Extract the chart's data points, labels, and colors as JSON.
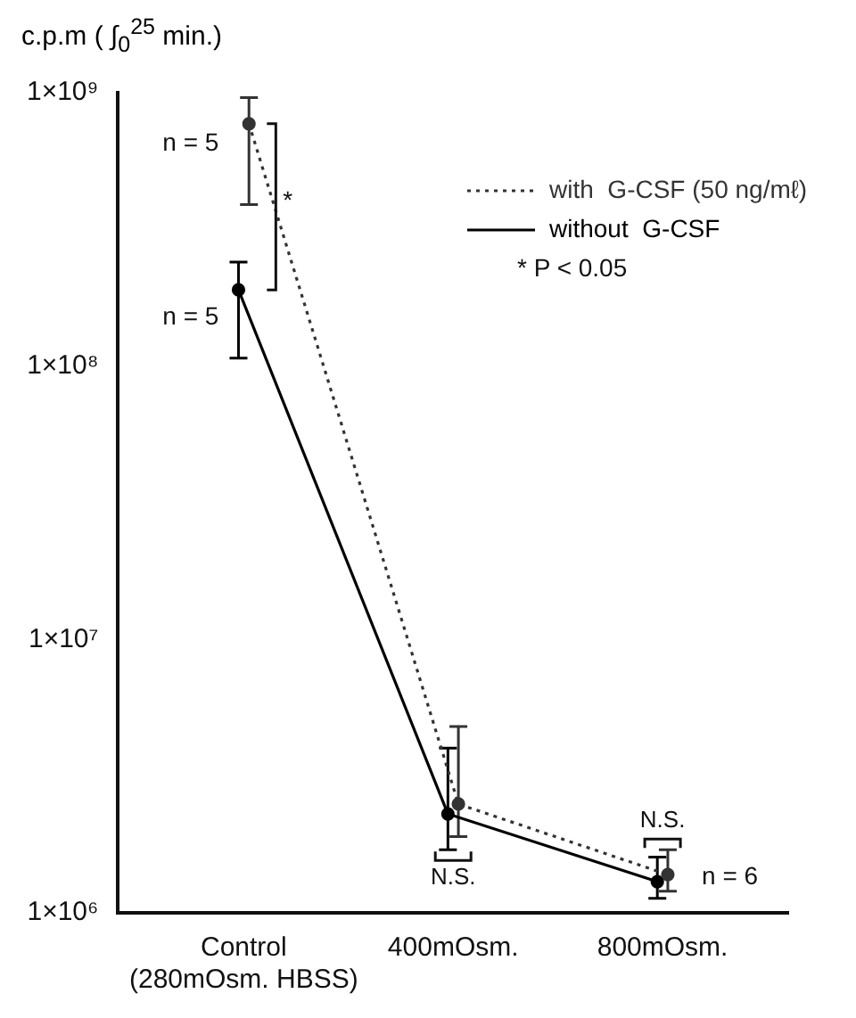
{
  "chart_data": {
    "type": "line",
    "ylabel": "c.p.m ( ∫$_{0}$$^{25}$ min.)",
    "categories": [
      "Control (280mOsm. HBSS)",
      "400mOsm.",
      "800mOsm."
    ],
    "series": [
      {
        "name": "with  G-CSF (50 ng/mℓ)",
        "color": "#333333",
        "line_style": "dotted",
        "values": [
          770000000,
          2500000,
          1380000
        ],
        "errors": [
          [
            390000000,
            960000000
          ],
          [
            1900000,
            4800000
          ],
          [
            1200000,
            1700000
          ]
        ]
      },
      {
        "name": "without  G-CSF",
        "color": "#000000",
        "line_style": "solid",
        "values": [
          190000000,
          2300000,
          1300000
        ],
        "errors": [
          [
            107000000,
            240000000
          ],
          [
            1700000,
            4000000
          ],
          [
            1130000,
            1600000
          ]
        ]
      }
    ],
    "log": true,
    "ylim": [
      1000000,
      1000000000
    ],
    "yticks": [
      {
        "value": 1000000,
        "label": "1×10⁶"
      },
      {
        "value": 10000000,
        "label": "1×10⁷"
      },
      {
        "value": 100000000,
        "label": "1×10⁸"
      },
      {
        "value": 1000000000,
        "label": "1×10⁹"
      }
    ],
    "grid": false,
    "legend": "top right",
    "marker": "circle",
    "annotations": [
      "* P < 0.05",
      {
        "text": "n = 5",
        "x": "Control (280mOsm. HBSS)",
        "y": 650000000
      },
      {
        "text": "n = 5",
        "x": "Control (280mOsm. HBSS)",
        "y": 150000000
      },
      {
        "text": "*",
        "x": "Control (280mOsm. HBSS)",
        "y": 400000000
      },
      {
        "text": "N.S.",
        "x": "400mOsm.",
        "y": 2300000
      },
      {
        "text": "N.S.",
        "x": "800mOsm.",
        "y": 1380000
      },
      {
        "text": "n = 6",
        "x": "800mOsm.",
        "y": 1350000
      }
    ]
  }
}
